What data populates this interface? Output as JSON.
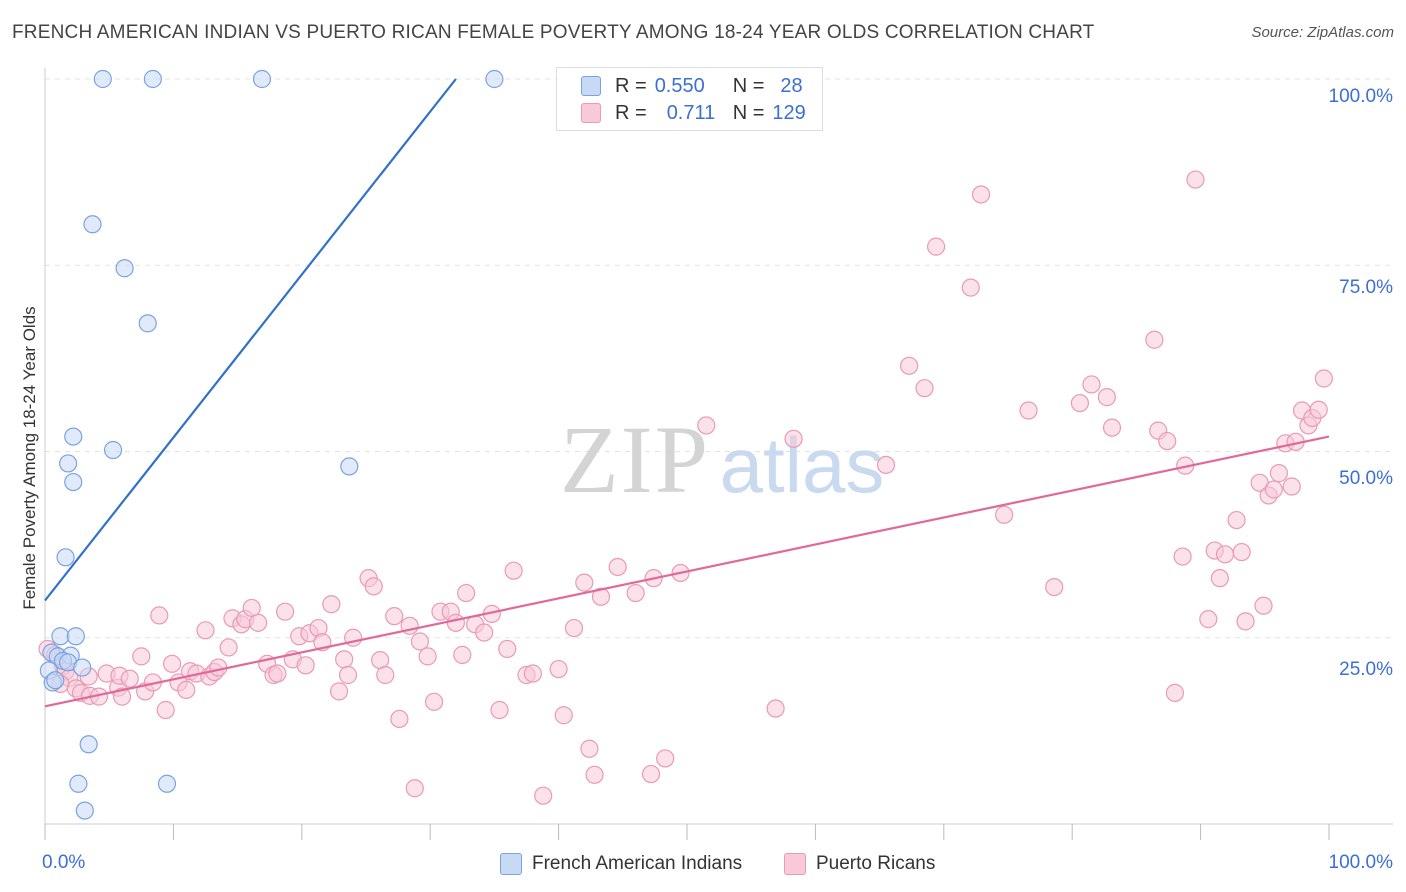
{
  "title": "FRENCH AMERICAN INDIAN VS PUERTO RICAN FEMALE POVERTY AMONG 18-24 YEAR OLDS CORRELATION CHART",
  "source": "Source: ZipAtlas.com",
  "watermark": {
    "zip": "ZIP",
    "atlas": "atlas"
  },
  "colors": {
    "blue_fill": "#c7d9f5",
    "blue_stroke": "#7aa3e0",
    "blue_line": "#3171c8",
    "pink_fill": "#f8c9d8",
    "pink_stroke": "#e99ab5",
    "pink_line": "#e0699a",
    "grid": "#e3e3e3",
    "tick_text": "#3b6fd4"
  },
  "legend_top": [
    {
      "r_label": "R =",
      "r_value": "0.550",
      "n_label": "N =",
      "n_value": "28"
    },
    {
      "r_label": "R =",
      "r_value": "0.711",
      "n_label": "N =",
      "n_value": "129"
    }
  ],
  "legend_bottom": [
    "French American Indians",
    "Puerto Ricans"
  ],
  "x_tick_labels": {
    "left": "0.0%",
    "right": "100.0%"
  },
  "y_tick_labels": [
    "100.0%",
    "75.0%",
    "50.0%",
    "25.0%"
  ],
  "chart_data": {
    "type": "scatter",
    "xlabel": "",
    "ylabel": "Female Poverty Among 18-24 Year Olds",
    "xlim": [
      0,
      100
    ],
    "ylim": [
      0,
      100
    ],
    "y_ticks": [
      100,
      75,
      50,
      25
    ],
    "grid": true,
    "legend_placement": "top-center",
    "series": [
      {
        "name": "French American Indians",
        "color": "blue",
        "trend": {
          "x0": 0,
          "y0": 30,
          "x1": 32,
          "y1": 100
        },
        "points": [
          [
            4.5,
            100
          ],
          [
            8.4,
            100
          ],
          [
            16.9,
            100
          ],
          [
            35,
            100
          ],
          [
            3.7,
            80.5
          ],
          [
            6.2,
            74.6
          ],
          [
            8.0,
            67.2
          ],
          [
            2.2,
            52
          ],
          [
            5.3,
            50.2
          ],
          [
            1.8,
            48.4
          ],
          [
            2.2,
            45.9
          ],
          [
            23.7,
            48
          ],
          [
            1.6,
            35.8
          ],
          [
            1.2,
            25.2
          ],
          [
            2.4,
            25.2
          ],
          [
            0.5,
            23
          ],
          [
            1.0,
            22.5
          ],
          [
            2.0,
            22.6
          ],
          [
            1.4,
            21.9
          ],
          [
            1.8,
            21.7
          ],
          [
            0.3,
            20.6
          ],
          [
            2.9,
            21
          ],
          [
            0.6,
            19
          ],
          [
            0.8,
            19.3
          ],
          [
            3.4,
            10.7
          ],
          [
            2.6,
            5.4
          ],
          [
            9.5,
            5.4
          ],
          [
            3.1,
            1.8
          ]
        ]
      },
      {
        "name": "Puerto Ricans",
        "color": "pink",
        "trend": {
          "x0": 0,
          "y0": 15.8,
          "x1": 100,
          "y1": 52
        },
        "points": [
          [
            0.2,
            23.5
          ],
          [
            0.8,
            22.7
          ],
          [
            1.4,
            21.2
          ],
          [
            1.6,
            20.5
          ],
          [
            1.9,
            19.6
          ],
          [
            1.2,
            18.8
          ],
          [
            2.4,
            18.2
          ],
          [
            2.8,
            17.6
          ],
          [
            3.5,
            17.2
          ],
          [
            4.2,
            17.1
          ],
          [
            3.4,
            19.8
          ],
          [
            4.8,
            20.2
          ],
          [
            5.7,
            18.3
          ],
          [
            6.0,
            17.1
          ],
          [
            5.8,
            19.9
          ],
          [
            6.6,
            19.5
          ],
          [
            7.5,
            22.5
          ],
          [
            7.8,
            17.8
          ],
          [
            8.4,
            19
          ],
          [
            8.9,
            28
          ],
          [
            9.4,
            15.3
          ],
          [
            9.9,
            21.5
          ],
          [
            10.4,
            19
          ],
          [
            11,
            18
          ],
          [
            11.3,
            20.5
          ],
          [
            11.8,
            20.2
          ],
          [
            12.5,
            26
          ],
          [
            12.8,
            19.8
          ],
          [
            13.2,
            20.4
          ],
          [
            13.5,
            21
          ],
          [
            14.3,
            23.7
          ],
          [
            14.6,
            27.6
          ],
          [
            15.3,
            26.8
          ],
          [
            15.6,
            27.5
          ],
          [
            16.1,
            29
          ],
          [
            16.6,
            27
          ],
          [
            17.3,
            21.5
          ],
          [
            17.8,
            20
          ],
          [
            18.1,
            20.2
          ],
          [
            18.7,
            28.5
          ],
          [
            19.3,
            22.1
          ],
          [
            19.8,
            25.2
          ],
          [
            20.3,
            21.3
          ],
          [
            20.6,
            25.6
          ],
          [
            21.3,
            26.3
          ],
          [
            21.6,
            24.4
          ],
          [
            22.3,
            29.5
          ],
          [
            22.9,
            17.8
          ],
          [
            23.3,
            22.1
          ],
          [
            23.6,
            20
          ],
          [
            24,
            25
          ],
          [
            25.2,
            33
          ],
          [
            25.6,
            31.9
          ],
          [
            26.1,
            22
          ],
          [
            26.5,
            20
          ],
          [
            27.2,
            27.9
          ],
          [
            27.6,
            14.1
          ],
          [
            28.4,
            26.6
          ],
          [
            28.8,
            4.8
          ],
          [
            29.2,
            24.5
          ],
          [
            29.8,
            22.5
          ],
          [
            30.3,
            16.4
          ],
          [
            30.8,
            28.5
          ],
          [
            31.6,
            28.5
          ],
          [
            32,
            27
          ],
          [
            32.5,
            22.7
          ],
          [
            32.8,
            31
          ],
          [
            33.5,
            26.8
          ],
          [
            34.2,
            25.7
          ],
          [
            34.8,
            28.2
          ],
          [
            35.4,
            15.3
          ],
          [
            36,
            23.5
          ],
          [
            36.5,
            34
          ],
          [
            37.5,
            20
          ],
          [
            38,
            20.2
          ],
          [
            38.8,
            3.8
          ],
          [
            40,
            20.8
          ],
          [
            40.4,
            14.6
          ],
          [
            41.2,
            26.3
          ],
          [
            42,
            32.4
          ],
          [
            42.4,
            10.1
          ],
          [
            42.8,
            6.6
          ],
          [
            43.3,
            30.5
          ],
          [
            44.6,
            34.5
          ],
          [
            46,
            31
          ],
          [
            47.2,
            6.7
          ],
          [
            47.4,
            33
          ],
          [
            48.3,
            8.8
          ],
          [
            49.5,
            33.7
          ],
          [
            51.5,
            53.5
          ],
          [
            56.9,
            15.5
          ],
          [
            58.3,
            51.7
          ],
          [
            65.5,
            48.2
          ],
          [
            67.3,
            61.5
          ],
          [
            68.5,
            58.5
          ],
          [
            69.4,
            77.5
          ],
          [
            72.1,
            72
          ],
          [
            72.9,
            84.5
          ],
          [
            74.7,
            41.5
          ],
          [
            76.6,
            55.5
          ],
          [
            78.6,
            31.8
          ],
          [
            80.6,
            56.5
          ],
          [
            81.5,
            59
          ],
          [
            82.7,
            57.3
          ],
          [
            83.1,
            53.2
          ],
          [
            86.4,
            65
          ],
          [
            86.7,
            52.8
          ],
          [
            87.4,
            51.4
          ],
          [
            88,
            17.6
          ],
          [
            88.6,
            35.9
          ],
          [
            88.8,
            48.1
          ],
          [
            89.6,
            86.5
          ],
          [
            90.6,
            27.5
          ],
          [
            91.1,
            36.7
          ],
          [
            91.5,
            33
          ],
          [
            91.9,
            36.2
          ],
          [
            92.8,
            40.8
          ],
          [
            93.2,
            36.5
          ],
          [
            93.5,
            27.2
          ],
          [
            94.6,
            45.8
          ],
          [
            94.9,
            29.3
          ],
          [
            95.3,
            44.1
          ],
          [
            95.7,
            44.9
          ],
          [
            96.1,
            47.1
          ],
          [
            96.6,
            51.1
          ],
          [
            97.1,
            45.3
          ],
          [
            97.4,
            51.3
          ],
          [
            97.9,
            55.5
          ],
          [
            98.4,
            53.5
          ],
          [
            98.7,
            54.5
          ],
          [
            99.2,
            55.6
          ],
          [
            99.6,
            59.8
          ]
        ]
      }
    ]
  }
}
